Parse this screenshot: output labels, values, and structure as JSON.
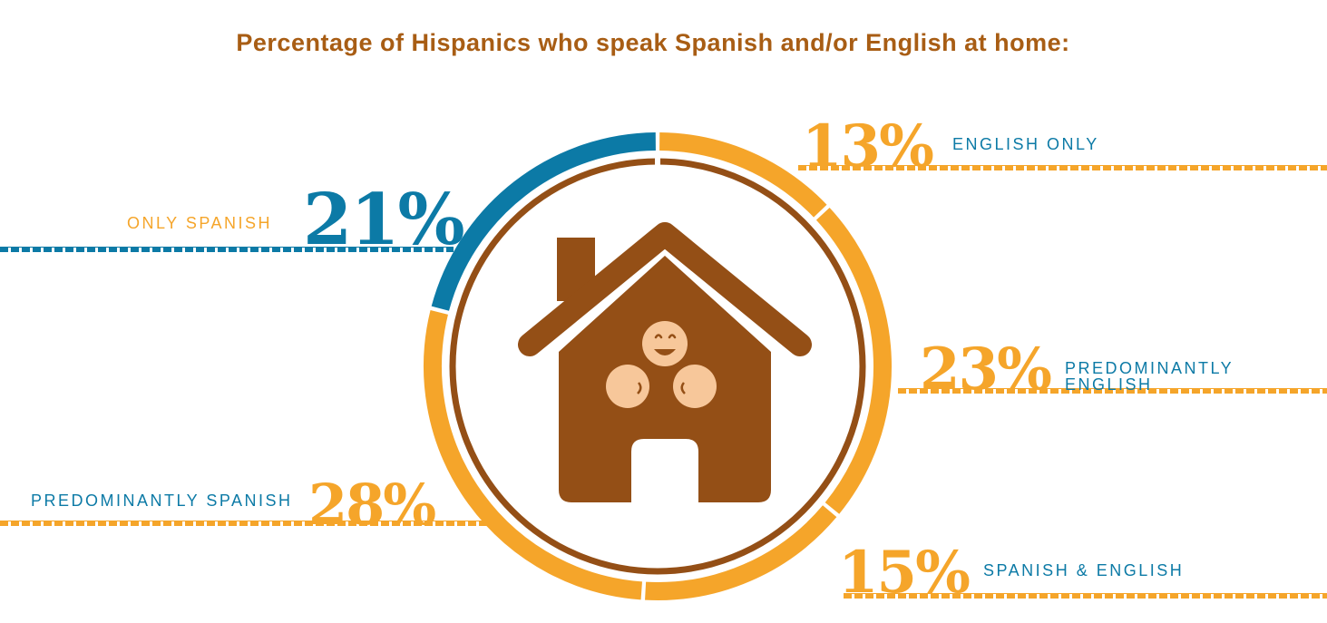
{
  "colors": {
    "blue": "#0c7aa6",
    "orange": "#f5a52a",
    "brown": "#944f16",
    "skin": "#f7c79a",
    "title": "#a85d14"
  },
  "icons": [
    "house-icon",
    "smiling-face-icon"
  ],
  "chart_data": {
    "type": "pie",
    "title": "Percentage of Hispanics who speak Spanish and/or English at home:",
    "categories": [
      "ENGLISH ONLY",
      "PREDOMINANTLY ENGLISH",
      "SPANISH & ENGLISH",
      "PREDOMINANTLY SPANISH",
      "ONLY SPANISH"
    ],
    "values": [
      13,
      23,
      15,
      28,
      21
    ],
    "value_labels": [
      "13%",
      "23%",
      "15%",
      "28%",
      "21%"
    ],
    "label_colors": [
      "#0c7aa6",
      "#0c7aa6",
      "#0c7aa6",
      "#0c7aa6",
      "#f5a52a"
    ],
    "slice_colors": [
      "#f5a52a",
      "#f5a52a",
      "#f5a52a",
      "#f5a52a",
      "#0c7aa6"
    ],
    "value_colors": [
      "#f5a52a",
      "#f5a52a",
      "#f5a52a",
      "#f5a52a",
      "#0c7aa6"
    ]
  }
}
